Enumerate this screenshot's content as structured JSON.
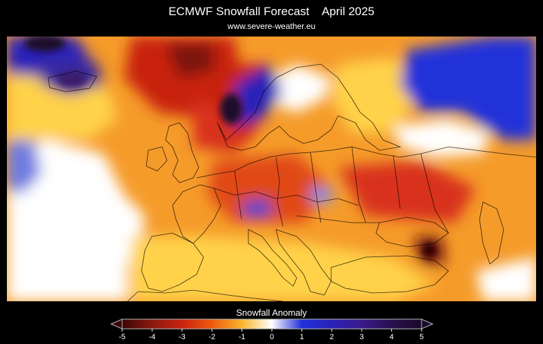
{
  "header": {
    "title": "ECMWF Snowfall Forecast    April 2025",
    "source": "www.severe-weather.eu"
  },
  "legend": {
    "title": "Snowfall Anomaly",
    "min": -5,
    "max": 5,
    "ticks": [
      "-5",
      "-4",
      "-3",
      "-2",
      "-1",
      "0",
      "1",
      "2",
      "3",
      "4",
      "5"
    ],
    "colors": {
      "-5": "#3a0707",
      "-4": "#8a1a0e",
      "-3": "#c8230d",
      "-2": "#ee5a10",
      "-1": "#f7b52c",
      "0": "#ffffff",
      "1": "#2230d9",
      "2": "#2a22b8",
      "3": "#3a1a8a",
      "4": "#2a1050",
      "5": "#1a0a2a"
    }
  },
  "map": {
    "region": "Europe",
    "background_color": "#f59b2a",
    "line_color": "#000000"
  }
}
